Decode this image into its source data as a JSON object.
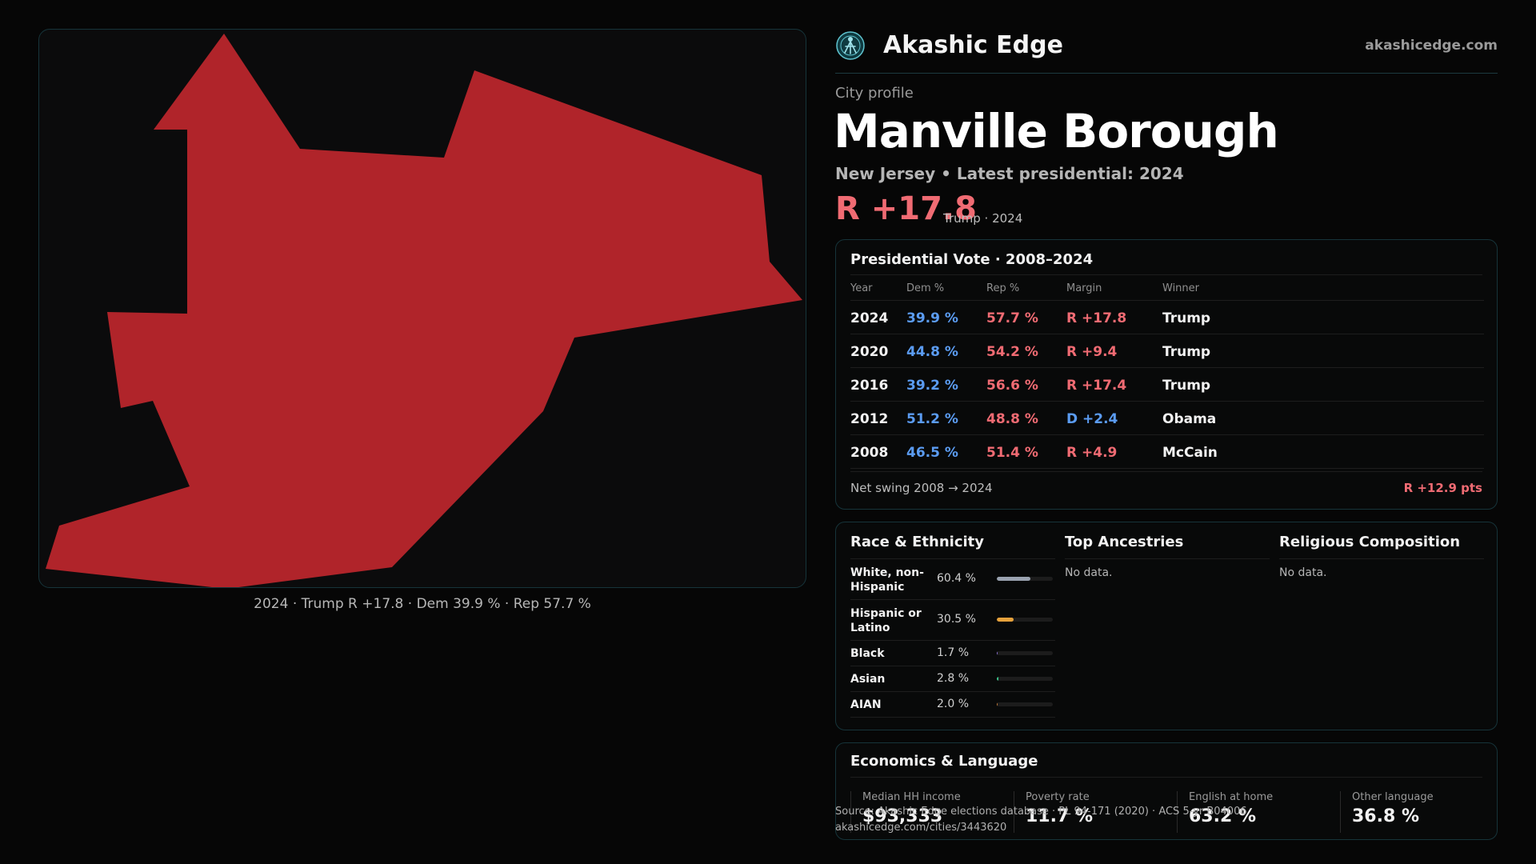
{
  "brand": {
    "name": "Akashic Edge",
    "site": "akashicedge.com",
    "logo_icon": "akashic-logo-icon"
  },
  "map": {
    "fill": "#b0242a",
    "caption": "2024 · Trump R +17.8 · Dem 39.9 % · Rep 57.7 %"
  },
  "profile": {
    "eyebrow": "City profile",
    "name": "Manville Borough",
    "subtitle": "New Jersey • Latest presidential: 2024",
    "margin": "R +17.8",
    "margin_note": "Trump · 2024"
  },
  "vote": {
    "title": "Presidential Vote · 2008–2024",
    "headers": [
      "Year",
      "Dem %",
      "Rep %",
      "Margin",
      "Winner"
    ],
    "rows": [
      {
        "year": "2024",
        "dem": "39.9 %",
        "rep": "57.7 %",
        "margin": "R +17.8",
        "winner": "Trump",
        "party": "R"
      },
      {
        "year": "2020",
        "dem": "44.8 %",
        "rep": "54.2 %",
        "margin": "R +9.4",
        "winner": "Trump",
        "party": "R"
      },
      {
        "year": "2016",
        "dem": "39.2 %",
        "rep": "56.6 %",
        "margin": "R +17.4",
        "winner": "Trump",
        "party": "R"
      },
      {
        "year": "2012",
        "dem": "51.2 %",
        "rep": "48.8 %",
        "margin": "D +2.4",
        "winner": "Obama",
        "party": "D"
      },
      {
        "year": "2008",
        "dem": "46.5 %",
        "rep": "51.4 %",
        "margin": "R +4.9",
        "winner": "McCain",
        "party": "R"
      }
    ],
    "swing_label": "Net swing 2008 → 2024",
    "swing_value": "R +12.9 pts"
  },
  "colors": {
    "dem": "#5b9cf2",
    "rep": "#f06b73"
  },
  "demographics": {
    "race_title": "Race & Ethnicity",
    "race": [
      {
        "name": "White, non-Hispanic",
        "pct": "60.4 %",
        "share": 0.604,
        "color": "#9aa3b0"
      },
      {
        "name": "Hispanic or Latino",
        "pct": "30.5 %",
        "share": 0.305,
        "color": "#e6a23c"
      },
      {
        "name": "Black",
        "pct": "1.7 %",
        "share": 0.017,
        "color": "#8a6fd1"
      },
      {
        "name": "Asian",
        "pct": "2.8 %",
        "share": 0.028,
        "color": "#3bc48a"
      },
      {
        "name": "AIAN",
        "pct": "2.0 %",
        "share": 0.02,
        "color": "#c07a3a"
      }
    ],
    "ancestry_title": "Top Ancestries",
    "ancestry_empty": "No data.",
    "religion_title": "Religious Composition",
    "religion_empty": "No data."
  },
  "economics": {
    "title": "Economics & Language",
    "stats": [
      {
        "label": "Median HH income",
        "value": "$93,333"
      },
      {
        "label": "Poverty rate",
        "value": "11.7 %"
      },
      {
        "label": "English at home",
        "value": "63.2 %"
      },
      {
        "label": "Other language",
        "value": "36.8 %"
      }
    ]
  },
  "source": {
    "line1": "Source: Akashic Edge elections database · PL 94-171 (2020) · ACS 5-yr B04006",
    "line2": "akashicedge.com/cities/3443620"
  }
}
